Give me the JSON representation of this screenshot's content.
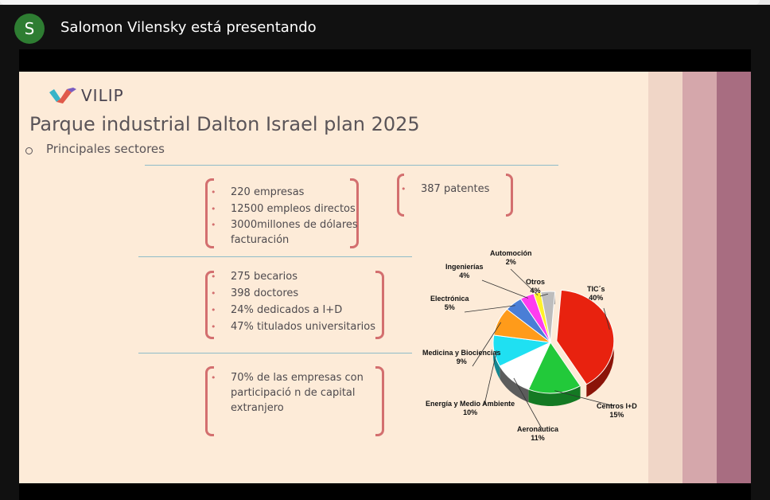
{
  "presenter": {
    "avatar_letter": "S",
    "text": "Salomon Vilensky está presentando",
    "avatar_color": "#2e7d32"
  },
  "slide": {
    "logo_text": "VILIP",
    "title": "Parque industrial Dalton Israel plan 2025",
    "subtitle": "Principales sectores",
    "box1": [
      "220 empresas",
      "12500 empleos directos",
      " 3000millones de dólares facturación"
    ],
    "box_patents": [
      "387 patentes"
    ],
    "box2": [
      "275 becarios",
      "398 doctores",
      "24% dedicados a I+D",
      "47% titulados universitarios"
    ],
    "box3": [
      "70% de las empresas  con participació n de capital extranjero"
    ],
    "accent_color": "#d36f6f"
  },
  "chart_data": {
    "type": "pie",
    "slices": [
      {
        "label": "TIC´s",
        "value": 40,
        "pct_text": "40%",
        "color": "#e8220f"
      },
      {
        "label": "Centros I+D",
        "value": 15,
        "pct_text": "15%",
        "color": "#22c93a"
      },
      {
        "label": "Aeronáutica",
        "value": 11,
        "pct_text": "11%",
        "color": "#ffffff"
      },
      {
        "label": "Energía y Medio Ambiente",
        "value": 10,
        "pct_text": "10%",
        "color": "#1fe0f2"
      },
      {
        "label": "Medicina y Biociencias",
        "value": 9,
        "pct_text": "9%",
        "color": "#ff9b1a"
      },
      {
        "label": "Electrónica",
        "value": 5,
        "pct_text": "5%",
        "color": "#4a7ed6"
      },
      {
        "label": "Ingenierías",
        "value": 4,
        "pct_text": "4%",
        "color": "#ff3cf0"
      },
      {
        "label": "Automoción",
        "value": 2,
        "pct_text": "2%",
        "color": "#fff22a"
      },
      {
        "label": "Otros",
        "value": 4,
        "pct_text": "4%",
        "color": "#bdbdbd"
      }
    ]
  }
}
